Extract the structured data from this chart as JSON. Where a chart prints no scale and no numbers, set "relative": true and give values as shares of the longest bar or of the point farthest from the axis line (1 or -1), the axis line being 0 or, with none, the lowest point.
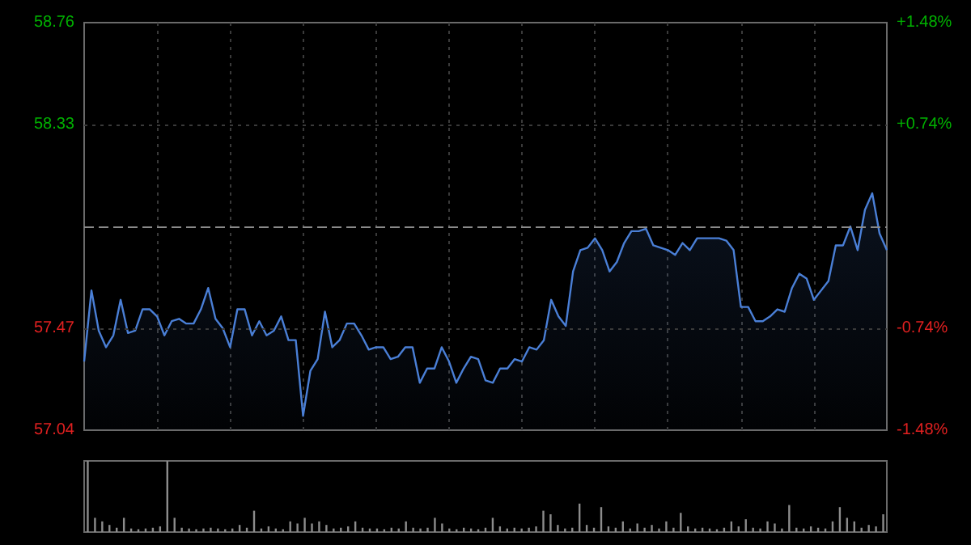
{
  "chart_data": [
    {
      "type": "area",
      "categories": [
        null,
        null,
        null,
        null,
        null,
        null,
        null,
        null,
        null,
        null,
        null,
        null,
        null,
        null,
        null,
        null,
        null,
        null,
        null,
        null,
        null,
        null,
        null,
        null,
        null,
        null,
        null,
        null,
        null,
        null,
        null,
        null,
        null,
        null,
        null,
        null,
        null,
        null,
        null,
        null,
        null,
        null,
        null,
        null,
        null,
        null,
        null,
        null,
        null,
        null,
        null,
        null,
        null,
        null,
        null,
        null,
        null,
        null,
        null,
        null,
        null,
        null,
        null,
        null,
        null,
        null,
        null,
        null,
        null,
        null,
        null,
        null,
        null,
        null,
        null,
        null,
        null,
        null,
        null,
        null,
        null,
        null,
        null,
        null,
        null,
        null,
        null,
        null,
        null,
        null,
        null,
        null,
        null,
        null,
        null,
        null,
        null,
        null,
        null,
        null,
        null,
        null,
        null,
        null,
        null,
        null,
        null,
        null,
        null,
        null,
        null
      ],
      "series": [
        {
          "color": "#4a7fd6",
          "values": [
            57.33,
            57.63,
            57.46,
            57.39,
            57.44,
            57.59,
            57.45,
            57.46,
            57.55,
            57.55,
            57.52,
            57.44,
            57.5,
            57.51,
            57.49,
            57.49,
            57.55,
            57.64,
            57.51,
            57.47,
            57.39,
            57.55,
            57.55,
            57.44,
            57.5,
            57.44,
            57.46,
            57.52,
            57.42,
            57.42,
            57.1,
            57.29,
            57.34,
            57.54,
            57.39,
            57.42,
            57.49,
            57.49,
            57.44,
            57.38,
            57.39,
            57.39,
            57.34,
            57.35,
            57.39,
            57.39,
            57.24,
            57.3,
            57.3,
            57.39,
            57.33,
            57.24,
            57.3,
            57.35,
            57.34,
            57.25,
            57.24,
            57.3,
            57.3,
            57.34,
            57.33,
            57.39,
            57.38,
            57.42,
            57.59,
            57.52,
            57.48,
            57.71,
            57.8,
            57.81,
            57.85,
            57.8,
            57.71,
            57.75,
            57.83,
            57.88,
            57.88,
            57.89,
            57.82,
            57.81,
            57.8,
            57.78,
            57.83,
            57.8,
            57.85,
            57.85,
            57.85,
            57.85,
            57.84,
            57.8,
            57.56,
            57.56,
            57.5,
            57.5,
            57.52,
            57.55,
            57.54,
            57.64,
            57.7,
            57.68,
            57.59,
            57.63,
            57.67,
            57.82,
            57.82,
            57.9,
            57.8,
            57.97,
            58.04,
            57.87,
            57.8
          ]
        }
      ],
      "ylim": [
        57.04,
        58.76
      ],
      "yticks": [
        57.04,
        57.47,
        58.33,
        58.76
      ],
      "y2lim": [
        -1.48,
        1.48
      ],
      "y2ticks": [
        {
          "value": -1.48,
          "label": "-1.48%"
        },
        {
          "value": -0.74,
          "label": "-0.74%"
        },
        {
          "value": 0.74,
          "label": "+0.74%"
        },
        {
          "value": 1.48,
          "label": "+1.48%"
        }
      ],
      "ref_lines": [
        {
          "axis": "y",
          "value": 57.9,
          "color": "#8a8a8a",
          "line_style": "dashed"
        }
      ],
      "grid": true,
      "tick_labels": "y"
    },
    {
      "type": "bar",
      "relative": true,
      "categories": [
        null,
        null,
        null,
        null,
        null,
        null,
        null,
        null,
        null,
        null,
        null,
        null,
        null,
        null,
        null,
        null,
        null,
        null,
        null,
        null,
        null,
        null,
        null,
        null,
        null,
        null,
        null,
        null,
        null,
        null,
        null,
        null,
        null,
        null,
        null,
        null,
        null,
        null,
        null,
        null,
        null,
        null,
        null,
        null,
        null,
        null,
        null,
        null,
        null,
        null,
        null,
        null,
        null,
        null,
        null,
        null,
        null,
        null,
        null,
        null,
        null,
        null,
        null,
        null,
        null,
        null,
        null,
        null,
        null,
        null,
        null,
        null,
        null,
        null,
        null,
        null,
        null,
        null,
        null,
        null,
        null,
        null,
        null,
        null,
        null,
        null,
        null,
        null,
        null,
        null,
        null,
        null,
        null,
        null,
        null,
        null,
        null,
        null,
        null,
        null,
        null,
        null,
        null,
        null,
        null,
        null,
        null,
        null,
        null,
        null,
        null
      ],
      "series": [
        {
          "color": "#8c8c8c",
          "values": [
            1.0,
            0.2,
            0.15,
            0.1,
            0.06,
            0.2,
            0.05,
            0.04,
            0.05,
            0.06,
            0.08,
            1.0,
            0.2,
            0.06,
            0.05,
            0.04,
            0.05,
            0.06,
            0.05,
            0.04,
            0.05,
            0.1,
            0.06,
            0.3,
            0.05,
            0.08,
            0.05,
            0.04,
            0.15,
            0.12,
            0.2,
            0.12,
            0.15,
            0.1,
            0.05,
            0.06,
            0.08,
            0.15,
            0.06,
            0.05,
            0.05,
            0.04,
            0.06,
            0.05,
            0.15,
            0.06,
            0.05,
            0.06,
            0.2,
            0.12,
            0.05,
            0.04,
            0.06,
            0.05,
            0.04,
            0.06,
            0.2,
            0.08,
            0.05,
            0.06,
            0.05,
            0.06,
            0.08,
            0.3,
            0.25,
            0.1,
            0.05,
            0.06,
            0.4,
            0.1,
            0.06,
            0.35,
            0.08,
            0.06,
            0.15,
            0.05,
            0.12,
            0.06,
            0.1,
            0.05,
            0.15,
            0.06,
            0.27,
            0.08,
            0.05,
            0.06,
            0.05,
            0.04,
            0.06,
            0.15,
            0.08,
            0.18,
            0.06,
            0.05,
            0.15,
            0.12,
            0.05,
            0.38,
            0.06,
            0.05,
            0.08,
            0.06,
            0.05,
            0.15,
            0.35,
            0.2,
            0.15,
            0.06,
            0.1,
            0.08,
            0.25
          ]
        }
      ]
    }
  ]
}
